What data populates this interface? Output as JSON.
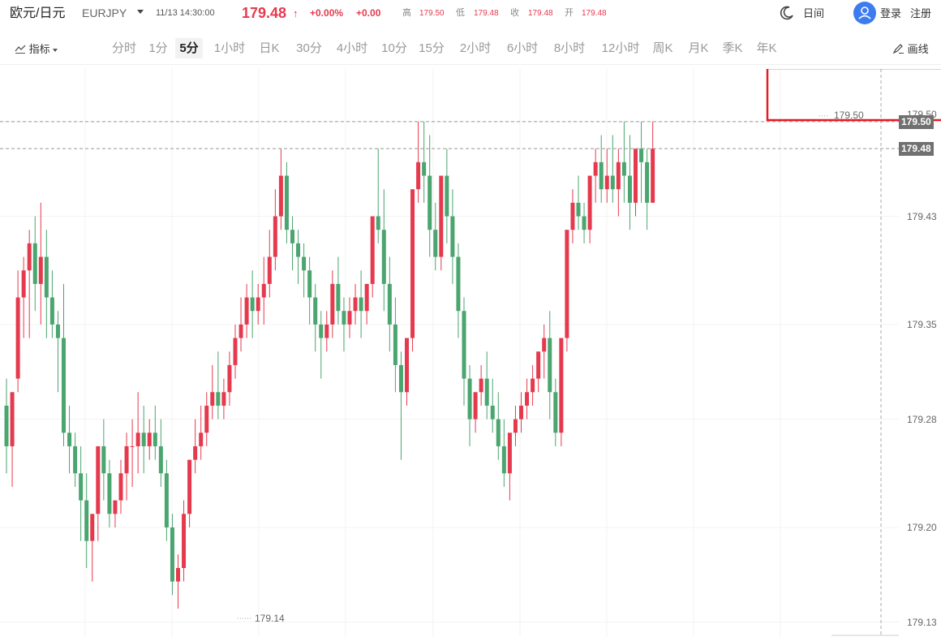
{
  "header": {
    "pair_name": "欧元/日元",
    "symbol": "EURJPY",
    "datetime": "11/13 14:30:00",
    "price": "179.48",
    "arrow": "↑",
    "change_pct": "+0.00%",
    "change": "+0.00",
    "quotes": [
      {
        "label": "高",
        "value": "179.50"
      },
      {
        "label": "低",
        "value": "179.48"
      },
      {
        "label": "收",
        "value": "179.48"
      },
      {
        "label": "开",
        "value": "179.48"
      }
    ],
    "theme_label": "日间",
    "login": "登录",
    "register": "注册"
  },
  "toolbar": {
    "indicators": "指标",
    "intervals": [
      "分时",
      "1分",
      "5分",
      "1小时",
      "日K",
      "30分",
      "4小时",
      "10分",
      "15分",
      "2小时",
      "6小时",
      "8小时",
      "12小时",
      "周K",
      "月K",
      "季K",
      "年K"
    ],
    "active_interval": "5分",
    "draw": "画线"
  },
  "chart_data": {
    "type": "candlestick",
    "y_ticks": [
      "179.50",
      "179.43",
      "179.35",
      "179.28",
      "179.20",
      "179.13"
    ],
    "ylim": [
      179.125,
      179.5125
    ],
    "current_price": "179.48",
    "highlight_price": "179.50",
    "max_marker": "179.50",
    "min_marker": "179.14",
    "colors": {
      "up": "#e53a4e",
      "down": "#4aa56f",
      "dash": "#999999",
      "highlight": "#e31c23"
    },
    "candles": [
      [
        179.29,
        179.31,
        179.26,
        179.24
      ],
      [
        179.26,
        179.27,
        179.3,
        179.23
      ],
      [
        179.31,
        179.39,
        179.37,
        179.3
      ],
      [
        179.37,
        179.4,
        179.39,
        179.34
      ],
      [
        179.39,
        179.42,
        179.41,
        179.34
      ],
      [
        179.41,
        179.43,
        179.38,
        179.36
      ],
      [
        179.38,
        179.44,
        179.4,
        179.35
      ],
      [
        179.4,
        179.42,
        179.37,
        179.34
      ],
      [
        179.37,
        179.39,
        179.35,
        179.34
      ],
      [
        179.35,
        179.36,
        179.34,
        179.3
      ],
      [
        179.34,
        179.38,
        179.27,
        179.26
      ],
      [
        179.27,
        179.29,
        179.26,
        179.24
      ],
      [
        179.26,
        179.27,
        179.24,
        179.23
      ],
      [
        179.24,
        179.26,
        179.22,
        179.19
      ],
      [
        179.22,
        179.24,
        179.19,
        179.17
      ],
      [
        179.19,
        179.2,
        179.21,
        179.16
      ],
      [
        179.21,
        179.23,
        179.26,
        179.19
      ],
      [
        179.26,
        179.28,
        179.24,
        179.22
      ],
      [
        179.24,
        179.25,
        179.21,
        179.2
      ],
      [
        179.21,
        179.22,
        179.22,
        179.2
      ],
      [
        179.22,
        179.25,
        179.24,
        179.21
      ],
      [
        179.24,
        179.27,
        179.26,
        179.22
      ],
      [
        179.26,
        179.28,
        179.26,
        179.23
      ],
      [
        179.26,
        179.3,
        179.27,
        179.24
      ],
      [
        179.27,
        179.29,
        179.26,
        179.24
      ],
      [
        179.26,
        179.28,
        179.27,
        179.25
      ],
      [
        179.27,
        179.29,
        179.26,
        179.25
      ],
      [
        179.26,
        179.28,
        179.24,
        179.23
      ],
      [
        179.24,
        179.25,
        179.2,
        179.19
      ],
      [
        179.2,
        179.21,
        179.16,
        179.15
      ],
      [
        179.16,
        179.18,
        179.17,
        179.14
      ],
      [
        179.17,
        179.22,
        179.21,
        179.16
      ],
      [
        179.21,
        179.25,
        179.25,
        179.2
      ],
      [
        179.25,
        179.28,
        179.26,
        179.24
      ],
      [
        179.26,
        179.29,
        179.27,
        179.25
      ],
      [
        179.27,
        179.3,
        179.29,
        179.26
      ],
      [
        179.29,
        179.32,
        179.3,
        179.28
      ],
      [
        179.3,
        179.33,
        179.29,
        179.28
      ],
      [
        179.29,
        179.31,
        179.3,
        179.28
      ],
      [
        179.3,
        179.33,
        179.32,
        179.29
      ],
      [
        179.32,
        179.35,
        179.34,
        179.31
      ],
      [
        179.34,
        179.37,
        179.35,
        179.33
      ],
      [
        179.35,
        179.38,
        179.37,
        179.34
      ],
      [
        179.37,
        179.39,
        179.36,
        179.34
      ],
      [
        179.36,
        179.38,
        179.37,
        179.35
      ],
      [
        179.37,
        179.4,
        179.38,
        179.35
      ],
      [
        179.38,
        179.42,
        179.4,
        179.37
      ],
      [
        179.4,
        179.45,
        179.43,
        179.39
      ],
      [
        179.43,
        179.48,
        179.46,
        179.42
      ],
      [
        179.46,
        179.47,
        179.42,
        179.41
      ],
      [
        179.42,
        179.43,
        179.41,
        179.39
      ],
      [
        179.41,
        179.42,
        179.4,
        179.38
      ],
      [
        179.4,
        179.41,
        179.39,
        179.37
      ],
      [
        179.39,
        179.4,
        179.37,
        179.35
      ],
      [
        179.37,
        179.38,
        179.35,
        179.33
      ],
      [
        179.35,
        179.36,
        179.34,
        179.31
      ],
      [
        179.34,
        179.36,
        179.35,
        179.33
      ],
      [
        179.35,
        179.39,
        179.38,
        179.34
      ],
      [
        179.38,
        179.4,
        179.36,
        179.35
      ],
      [
        179.36,
        179.37,
        179.35,
        179.33
      ],
      [
        179.35,
        179.37,
        179.36,
        179.34
      ],
      [
        179.36,
        179.38,
        179.37,
        179.35
      ],
      [
        179.37,
        179.39,
        179.36,
        179.34
      ],
      [
        179.36,
        179.38,
        179.38,
        179.35
      ],
      [
        179.38,
        179.42,
        179.43,
        179.37
      ],
      [
        179.43,
        179.48,
        179.42,
        179.41
      ],
      [
        179.42,
        179.45,
        179.38,
        179.36
      ],
      [
        179.38,
        179.4,
        179.35,
        179.33
      ],
      [
        179.35,
        179.37,
        179.32,
        179.3
      ],
      [
        179.32,
        179.33,
        179.3,
        179.25
      ],
      [
        179.3,
        179.34,
        179.34,
        179.29
      ],
      [
        179.34,
        179.4,
        179.45,
        179.33
      ],
      [
        179.45,
        179.5,
        179.47,
        179.44
      ],
      [
        179.47,
        179.5,
        179.46,
        179.44
      ],
      [
        179.46,
        179.49,
        179.42,
        179.4
      ],
      [
        179.42,
        179.44,
        179.4,
        179.39
      ],
      [
        179.4,
        179.43,
        179.46,
        179.39
      ],
      [
        179.46,
        179.48,
        179.43,
        179.41
      ],
      [
        179.43,
        179.45,
        179.4,
        179.38
      ],
      [
        179.4,
        179.41,
        179.36,
        179.34
      ],
      [
        179.36,
        179.37,
        179.31,
        179.29
      ],
      [
        179.31,
        179.32,
        179.28,
        179.26
      ],
      [
        179.28,
        179.3,
        179.3,
        179.27
      ],
      [
        179.3,
        179.32,
        179.31,
        179.29
      ],
      [
        179.31,
        179.33,
        179.29,
        179.28
      ],
      [
        179.29,
        179.31,
        179.28,
        179.27
      ],
      [
        179.28,
        179.3,
        179.26,
        179.25
      ],
      [
        179.26,
        179.28,
        179.24,
        179.23
      ],
      [
        179.24,
        179.26,
        179.27,
        179.22
      ],
      [
        179.27,
        179.29,
        179.28,
        179.26
      ],
      [
        179.28,
        179.3,
        179.29,
        179.27
      ],
      [
        179.29,
        179.31,
        179.3,
        179.28
      ],
      [
        179.3,
        179.32,
        179.31,
        179.29
      ],
      [
        179.31,
        179.33,
        179.33,
        179.3
      ],
      [
        179.33,
        179.35,
        179.34,
        179.31
      ],
      [
        179.34,
        179.36,
        179.3,
        179.28
      ],
      [
        179.3,
        179.31,
        179.27,
        179.26
      ],
      [
        179.27,
        179.33,
        179.34,
        179.26
      ],
      [
        179.34,
        179.4,
        179.42,
        179.33
      ],
      [
        179.42,
        179.45,
        179.44,
        179.41
      ],
      [
        179.44,
        179.46,
        179.43,
        179.42
      ],
      [
        179.43,
        179.44,
        179.42,
        179.41
      ],
      [
        179.42,
        179.45,
        179.46,
        179.41
      ],
      [
        179.46,
        179.48,
        179.47,
        179.44
      ],
      [
        179.47,
        179.49,
        179.45,
        179.44
      ],
      [
        179.45,
        179.48,
        179.46,
        179.44
      ],
      [
        179.46,
        179.49,
        179.45,
        179.44
      ],
      [
        179.45,
        179.48,
        179.47,
        179.43
      ],
      [
        179.47,
        179.5,
        179.46,
        179.44
      ],
      [
        179.46,
        179.49,
        179.44,
        179.42
      ],
      [
        179.44,
        179.47,
        179.48,
        179.43
      ],
      [
        179.48,
        179.5,
        179.47,
        179.44
      ],
      [
        179.47,
        179.48,
        179.44,
        179.42
      ],
      [
        179.44,
        179.5,
        179.48,
        179.44
      ]
    ]
  }
}
